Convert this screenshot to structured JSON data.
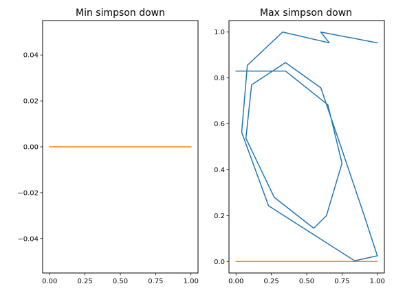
{
  "chart_data": [
    {
      "type": "line",
      "title": "Min simpson down",
      "xlim": [
        -0.05,
        1.05
      ],
      "ylim": [
        -0.055,
        0.055
      ],
      "xticks": [
        0.0,
        0.25,
        0.5,
        0.75,
        1.0
      ],
      "xtick_labels": [
        "0.00",
        "0.25",
        "0.50",
        "0.75",
        "1.00"
      ],
      "yticks": [
        -0.04,
        -0.02,
        0.0,
        0.02,
        0.04
      ],
      "ytick_labels": [
        "−0.04",
        "−0.02",
        "0.00",
        "0.02",
        "0.04"
      ],
      "series": [
        {
          "color": "#ff7f0e",
          "x": [
            0.0,
            1.0
          ],
          "y": [
            0.0,
            0.0
          ]
        }
      ]
    },
    {
      "type": "line",
      "title": "Max simpson down",
      "xlim": [
        -0.05,
        1.05
      ],
      "ylim": [
        -0.05,
        1.05
      ],
      "xticks": [
        0.0,
        0.25,
        0.5,
        0.75,
        1.0
      ],
      "xtick_labels": [
        "0.00",
        "0.25",
        "0.50",
        "0.75",
        "1.00"
      ],
      "yticks": [
        0.0,
        0.2,
        0.4,
        0.6,
        0.8,
        1.0
      ],
      "ytick_labels": [
        "0.0",
        "0.2",
        "0.4",
        "0.6",
        "0.8",
        "1.0"
      ],
      "series": [
        {
          "color": "#1f77b4",
          "x": [
            0.0,
            0.35,
            0.65,
            0.75,
            0.64,
            0.55,
            0.27,
            0.07,
            0.11,
            0.35,
            0.6,
            0.75,
            0.91,
            1.0,
            0.84,
            0.23,
            0.04,
            0.08,
            0.33,
            0.66,
            0.6,
            1.0
          ],
          "y": [
            0.83,
            0.83,
            0.683,
            0.428,
            0.2,
            0.145,
            0.28,
            0.537,
            0.77,
            0.867,
            0.757,
            0.487,
            0.195,
            0.025,
            0.003,
            0.243,
            0.563,
            0.855,
            1.0,
            0.953,
            1.0,
            0.953
          ]
        },
        {
          "color": "#ff7f0e",
          "x": [
            0.0,
            1.0
          ],
          "y": [
            0.0,
            0.0
          ]
        }
      ]
    }
  ]
}
